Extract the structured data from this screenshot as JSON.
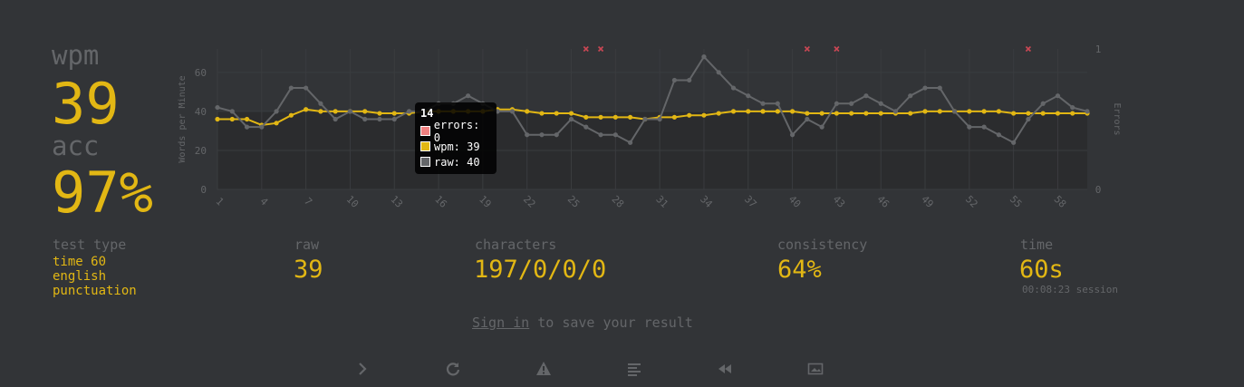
{
  "stats": {
    "wpm_label": "wpm",
    "wpm_value": "39",
    "acc_label": "acc",
    "acc_value": "97%"
  },
  "test_type": {
    "label": "test type",
    "lines": [
      "time 60",
      "english",
      "punctuation"
    ]
  },
  "details": {
    "raw_label": "raw",
    "raw_value": "39",
    "characters_label": "characters",
    "characters_value": "197/0/0/0",
    "consistency_label": "consistency",
    "consistency_value": "64%",
    "time_label": "time",
    "time_value": "60s",
    "session": "00:08:23 session"
  },
  "signin": {
    "link": "Sign in",
    "rest": " to save your result"
  },
  "tooltip": {
    "title": "14",
    "errors": "errors: 0",
    "wpm": "wpm: 39",
    "raw": "raw: 40"
  },
  "colors": {
    "background": "#323437",
    "main": "#e2b714",
    "sub": "#646669",
    "error": "#ca4754"
  },
  "toolbar": [
    "next-test-icon",
    "restart-icon",
    "report-icon",
    "word-history-icon",
    "replay-icon",
    "screenshot-icon"
  ],
  "chart_data": {
    "type": "line",
    "x": [
      1,
      2,
      3,
      4,
      5,
      6,
      7,
      8,
      9,
      10,
      11,
      12,
      13,
      14,
      15,
      16,
      17,
      18,
      19,
      20,
      21,
      22,
      23,
      24,
      25,
      26,
      27,
      28,
      29,
      30,
      31,
      32,
      33,
      34,
      35,
      36,
      37,
      38,
      39,
      40,
      41,
      42,
      43,
      44,
      45,
      46,
      47,
      48,
      49,
      50,
      51,
      52,
      53,
      54,
      55,
      56,
      57,
      58,
      59,
      60
    ],
    "x_tick_labels": [
      "1",
      "4",
      "7",
      "10",
      "13",
      "16",
      "19",
      "22",
      "25",
      "28",
      "31",
      "34",
      "37",
      "40",
      "43",
      "46",
      "49",
      "52",
      "55",
      "58"
    ],
    "ylabel": "Words per Minute",
    "y2label": "Errors",
    "ylim": [
      0,
      72
    ],
    "y_ticks": [
      "0",
      "20",
      "40",
      "60"
    ],
    "y2lim": [
      0,
      1
    ],
    "y2_ticks": [
      "0",
      "1"
    ],
    "series": [
      {
        "name": "wpm",
        "color": "#e2b714",
        "values": [
          36,
          36,
          36,
          33,
          34,
          38,
          41,
          40,
          40,
          40,
          40,
          39,
          39,
          39,
          40,
          40,
          40,
          40,
          40,
          41,
          41,
          40,
          39,
          39,
          39,
          37,
          37,
          37,
          37,
          36,
          37,
          37,
          38,
          38,
          39,
          40,
          40,
          40,
          40,
          40,
          39,
          39,
          39,
          39,
          39,
          39,
          39,
          39,
          40,
          40,
          40,
          40,
          40,
          40,
          39,
          39,
          39,
          39,
          39,
          39
        ]
      },
      {
        "name": "raw",
        "color": "#646669",
        "values": [
          42,
          40,
          32,
          32,
          40,
          52,
          52,
          44,
          36,
          40,
          36,
          36,
          36,
          40,
          40,
          44,
          44,
          48,
          44,
          40,
          40,
          28,
          28,
          28,
          36,
          32,
          28,
          28,
          24,
          36,
          36,
          56,
          56,
          68,
          60,
          52,
          48,
          44,
          44,
          28,
          36,
          32,
          44,
          44,
          48,
          44,
          40,
          48,
          52,
          52,
          40,
          32,
          32,
          28,
          24,
          36,
          44,
          48,
          42,
          40
        ]
      },
      {
        "name": "errors",
        "color": "#ca4754",
        "points": [
          26,
          27,
          41,
          43,
          56
        ]
      }
    ],
    "grid": true
  }
}
